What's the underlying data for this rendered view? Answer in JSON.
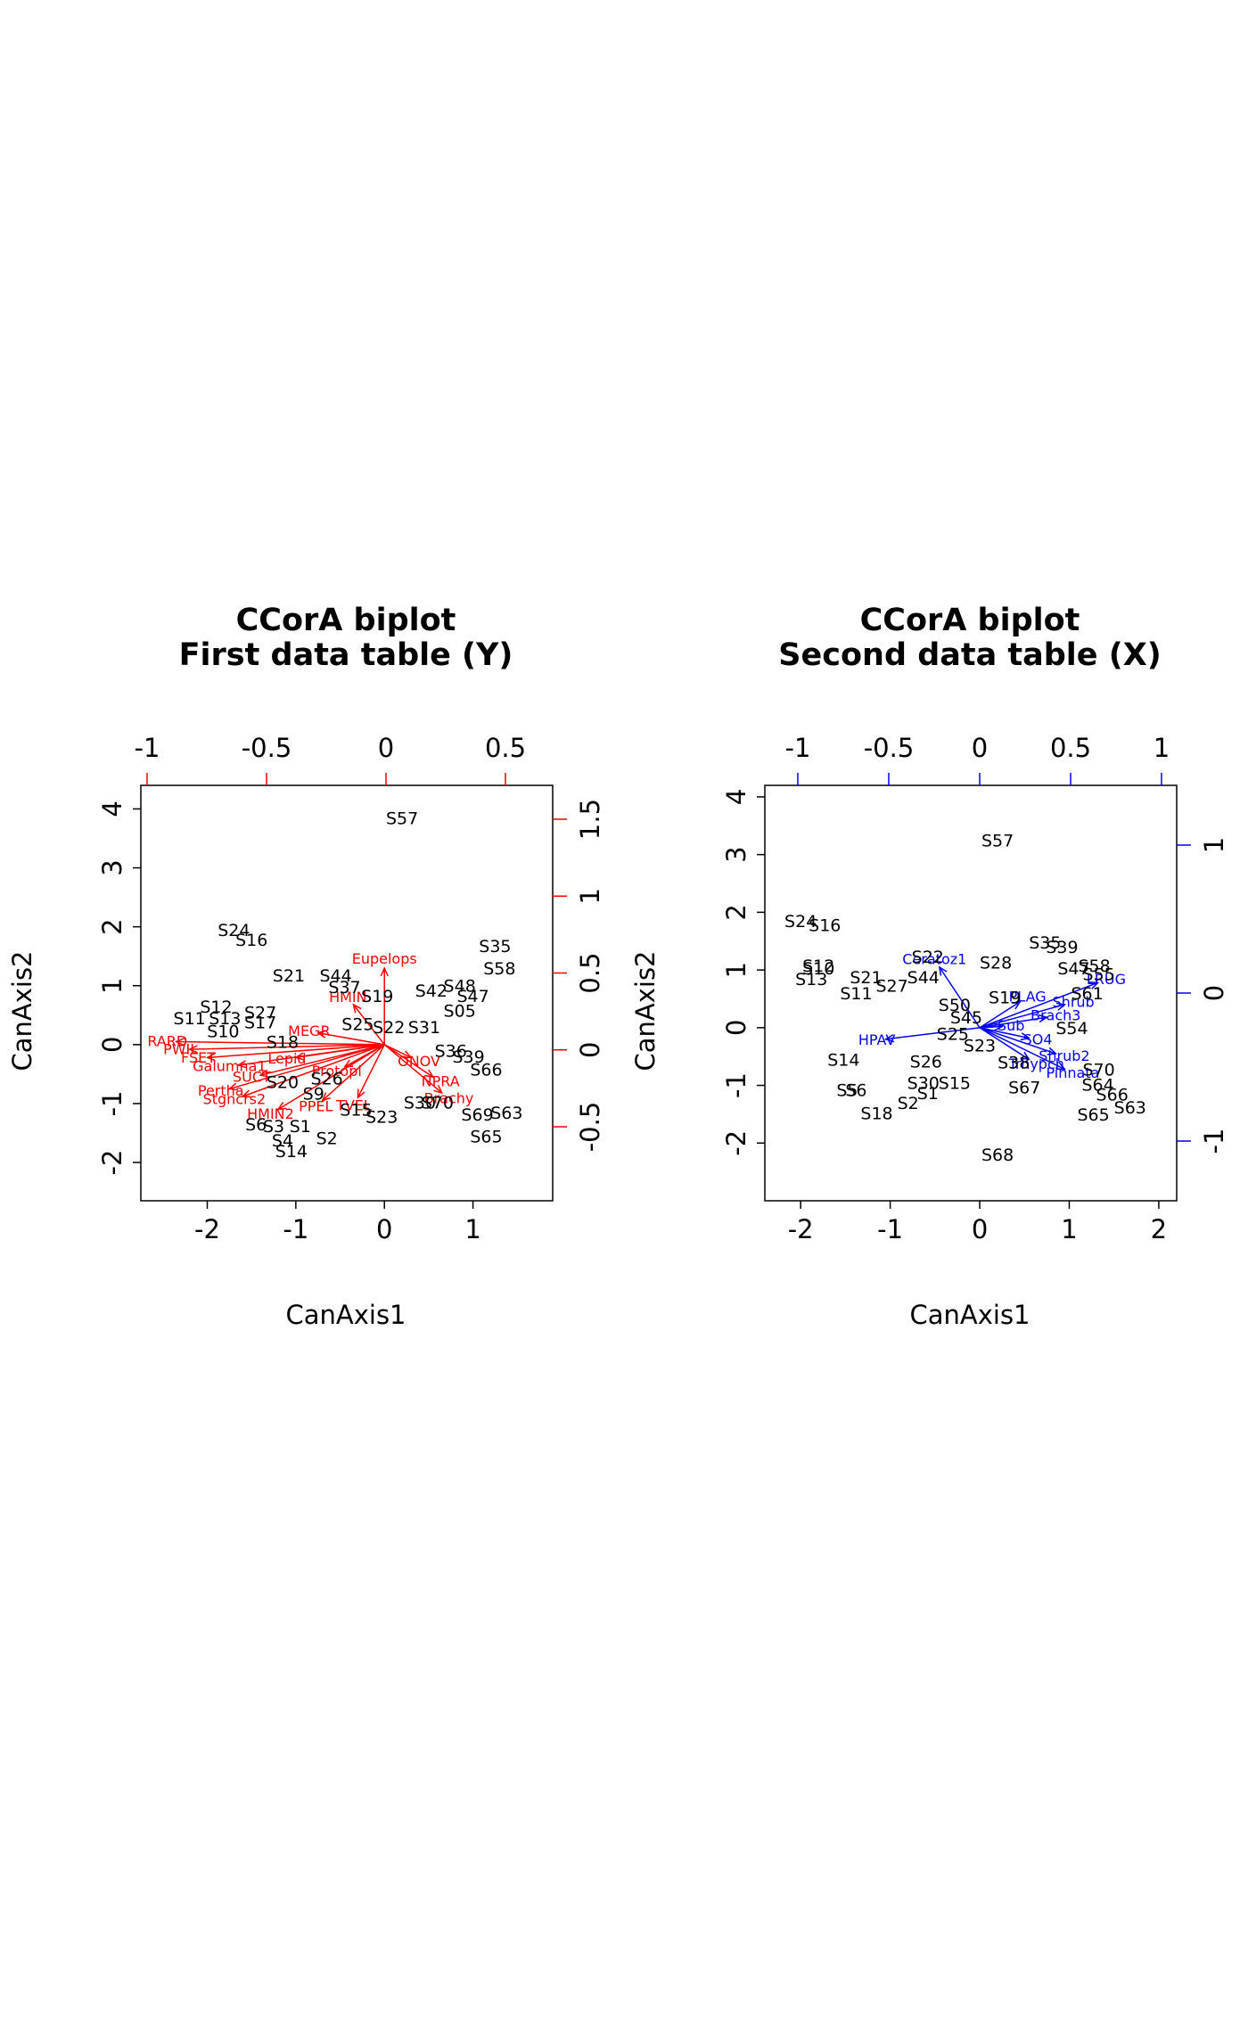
{
  "colors": {
    "y_vars": "#ff0000",
    "x_vars": "#0000ff",
    "sites": "#000000",
    "frame": "#000000"
  },
  "chart_data": [
    {
      "type": "scatter",
      "panel": "left",
      "title": "CCorA biplot",
      "subtitle": "First data table (Y)",
      "xlabel": "CanAxis1",
      "ylabel": "CanAxis2",
      "xlim": [
        -2.75,
        1.9
      ],
      "ylim": [
        -2.65,
        4.4
      ],
      "xticks": [
        -2,
        -1,
        0,
        1
      ],
      "yticks": [
        -2,
        -1,
        0,
        1,
        2,
        3,
        4
      ],
      "top_axis_ticks": [
        -1.0,
        -0.5,
        0.0,
        0.5
      ],
      "right_axis_ticks": [
        -0.5,
        0.0,
        0.5,
        1.0,
        1.5
      ],
      "var_color": "#ff0000",
      "sites": [
        {
          "label": "S57",
          "x": 0.2,
          "y": 3.85
        },
        {
          "label": "S24",
          "x": -1.7,
          "y": 1.95
        },
        {
          "label": "S16",
          "x": -1.5,
          "y": 1.78
        },
        {
          "label": "S21",
          "x": -1.08,
          "y": 1.18
        },
        {
          "label": "S44",
          "x": -0.55,
          "y": 1.18
        },
        {
          "label": "S37",
          "x": -0.45,
          "y": 0.98
        },
        {
          "label": "S35",
          "x": 1.25,
          "y": 1.68
        },
        {
          "label": "S58",
          "x": 1.3,
          "y": 1.3
        },
        {
          "label": "S48",
          "x": 0.85,
          "y": 1.0
        },
        {
          "label": "S47",
          "x": 1.0,
          "y": 0.83
        },
        {
          "label": "S42",
          "x": 0.53,
          "y": 0.92
        },
        {
          "label": "S19",
          "x": -0.08,
          "y": 0.83
        },
        {
          "label": "S25",
          "x": -0.3,
          "y": 0.35
        },
        {
          "label": "S22",
          "x": 0.05,
          "y": 0.3
        },
        {
          "label": "S31",
          "x": 0.45,
          "y": 0.3
        },
        {
          "label": "S05",
          "x": 0.85,
          "y": 0.58
        },
        {
          "label": "S12",
          "x": -1.9,
          "y": 0.65
        },
        {
          "label": "S27",
          "x": -1.4,
          "y": 0.55
        },
        {
          "label": "S17",
          "x": -1.4,
          "y": 0.38
        },
        {
          "label": "S11",
          "x": -2.2,
          "y": 0.45
        },
        {
          "label": "S13",
          "x": -1.8,
          "y": 0.45
        },
        {
          "label": "S10",
          "x": -1.82,
          "y": 0.23
        },
        {
          "label": "S18",
          "x": -1.15,
          "y": 0.05
        },
        {
          "label": "S36",
          "x": 0.75,
          "y": -0.1
        },
        {
          "label": "S39",
          "x": 0.95,
          "y": -0.2
        },
        {
          "label": "S66",
          "x": 1.15,
          "y": -0.42
        },
        {
          "label": "S20",
          "x": -1.15,
          "y": -0.63
        },
        {
          "label": "S26",
          "x": -0.65,
          "y": -0.57
        },
        {
          "label": "S9",
          "x": -0.8,
          "y": -0.83
        },
        {
          "label": "S15",
          "x": -0.32,
          "y": -1.1
        },
        {
          "label": "S23",
          "x": -0.03,
          "y": -1.22
        },
        {
          "label": "S30",
          "x": 0.4,
          "y": -0.98
        },
        {
          "label": "S70",
          "x": 0.6,
          "y": -0.98
        },
        {
          "label": "S69",
          "x": 1.05,
          "y": -1.18
        },
        {
          "label": "S63",
          "x": 1.38,
          "y": -1.15
        },
        {
          "label": "S65",
          "x": 1.15,
          "y": -1.55
        },
        {
          "label": "S6",
          "x": -1.45,
          "y": -1.35
        },
        {
          "label": "S3",
          "x": -1.25,
          "y": -1.38
        },
        {
          "label": "S1",
          "x": -0.95,
          "y": -1.38
        },
        {
          "label": "S4",
          "x": -1.15,
          "y": -1.62
        },
        {
          "label": "S2",
          "x": -0.65,
          "y": -1.58
        },
        {
          "label": "S14",
          "x": -1.05,
          "y": -1.8
        }
      ],
      "arrows": [
        {
          "label": "Eupelops",
          "x": 0.0,
          "y": 1.3
        },
        {
          "label": "HMIN",
          "x": -0.35,
          "y": 0.68
        },
        {
          "label": "MEGR",
          "x": -0.75,
          "y": 0.2
        },
        {
          "label": "RARD",
          "x": -2.35,
          "y": 0.05
        },
        {
          "label": "PWIL",
          "x": -2.2,
          "y": -0.08
        },
        {
          "label": "FSET",
          "x": -2.0,
          "y": -0.22
        },
        {
          "label": "Galumna1",
          "x": -1.65,
          "y": -0.35
        },
        {
          "label": "Lepid",
          "x": -1.0,
          "y": -0.22
        },
        {
          "label": "SUCT",
          "x": -1.4,
          "y": -0.52
        },
        {
          "label": "Pertha",
          "x": -1.75,
          "y": -0.75
        },
        {
          "label": "Stgncrs2",
          "x": -1.6,
          "y": -0.88
        },
        {
          "label": "HMIN2",
          "x": -1.2,
          "y": -1.1
        },
        {
          "label": "PPEL",
          "x": -0.7,
          "y": -0.95
        },
        {
          "label": "TVEL",
          "x": -0.3,
          "y": -0.9
        },
        {
          "label": "Brachy",
          "x": 0.65,
          "y": -0.82
        },
        {
          "label": "NPRA",
          "x": 0.55,
          "y": -0.55
        },
        {
          "label": "ONOV",
          "x": 0.3,
          "y": -0.22
        },
        {
          "label": "Protopl",
          "x": -0.45,
          "y": -0.38
        }
      ]
    },
    {
      "type": "scatter",
      "panel": "right",
      "title": "CCorA biplot",
      "subtitle": "Second data table (X)",
      "xlabel": "CanAxis1",
      "ylabel": "CanAxis2",
      "xlim": [
        -2.4,
        2.2
      ],
      "ylim": [
        -3.0,
        4.2
      ],
      "xticks": [
        -2,
        -1,
        0,
        1,
        2
      ],
      "yticks": [
        -2,
        -1,
        0,
        1,
        2,
        3,
        4
      ],
      "top_axis_ticks": [
        -1.0,
        -0.5,
        0.0,
        0.5,
        1.0
      ],
      "right_axis_ticks": [
        -1.0,
        0.0,
        1.0
      ],
      "var_color": "#0000ff",
      "sites": [
        {
          "label": "S57",
          "x": 0.2,
          "y": 3.25
        },
        {
          "label": "S24",
          "x": -2.0,
          "y": 1.85
        },
        {
          "label": "S16",
          "x": -1.73,
          "y": 1.78
        },
        {
          "label": "S10",
          "x": -1.8,
          "y": 1.03
        },
        {
          "label": "S12",
          "x": -1.8,
          "y": 1.08
        },
        {
          "label": "S13",
          "x": -1.88,
          "y": 0.85
        },
        {
          "label": "S21",
          "x": -1.27,
          "y": 0.88
        },
        {
          "label": "S11",
          "x": -1.38,
          "y": 0.6
        },
        {
          "label": "S27",
          "x": -0.98,
          "y": 0.73
        },
        {
          "label": "S22",
          "x": -0.58,
          "y": 1.23
        },
        {
          "label": "S44",
          "x": -0.63,
          "y": 0.88
        },
        {
          "label": "S28",
          "x": 0.18,
          "y": 1.13
        },
        {
          "label": "S35",
          "x": 0.73,
          "y": 1.48
        },
        {
          "label": "S39",
          "x": 0.92,
          "y": 1.4
        },
        {
          "label": "S58",
          "x": 1.28,
          "y": 1.08
        },
        {
          "label": "S47",
          "x": 1.05,
          "y": 1.03
        },
        {
          "label": "S55",
          "x": 1.33,
          "y": 0.93
        },
        {
          "label": "S61",
          "x": 1.2,
          "y": 0.6
        },
        {
          "label": "S19",
          "x": 0.28,
          "y": 0.53
        },
        {
          "label": "S50",
          "x": -0.28,
          "y": 0.4
        },
        {
          "label": "S45",
          "x": -0.15,
          "y": 0.18
        },
        {
          "label": "S25",
          "x": -0.3,
          "y": -0.1
        },
        {
          "label": "S23",
          "x": 0.0,
          "y": -0.3
        },
        {
          "label": "S54",
          "x": 1.03,
          "y": 0.0
        },
        {
          "label": "S38",
          "x": 0.38,
          "y": -0.6
        },
        {
          "label": "S67",
          "x": 0.5,
          "y": -1.03
        },
        {
          "label": "S70",
          "x": 1.33,
          "y": -0.72
        },
        {
          "label": "S64",
          "x": 1.32,
          "y": -0.98
        },
        {
          "label": "S66",
          "x": 1.48,
          "y": -1.15
        },
        {
          "label": "S63",
          "x": 1.68,
          "y": -1.38
        },
        {
          "label": "S65",
          "x": 1.27,
          "y": -1.5
        },
        {
          "label": "S68",
          "x": 0.2,
          "y": -2.2
        },
        {
          "label": "S14",
          "x": -1.52,
          "y": -0.55
        },
        {
          "label": "S26",
          "x": -0.6,
          "y": -0.58
        },
        {
          "label": "S30",
          "x": -0.63,
          "y": -0.95
        },
        {
          "label": "S15",
          "x": -0.28,
          "y": -0.95
        },
        {
          "label": "S1",
          "x": -0.58,
          "y": -1.13
        },
        {
          "label": "S2",
          "x": -0.8,
          "y": -1.3
        },
        {
          "label": "S18",
          "x": -1.15,
          "y": -1.48
        },
        {
          "label": "S5",
          "x": -1.48,
          "y": -1.08
        },
        {
          "label": "S6",
          "x": -1.38,
          "y": -1.08
        }
      ],
      "arrows": [
        {
          "label": "Ceratoz1",
          "x": -0.45,
          "y": 1.05
        },
        {
          "label": "LRUG",
          "x": 1.32,
          "y": 0.78
        },
        {
          "label": "HPAV",
          "x": -1.05,
          "y": -0.2
        },
        {
          "label": "PLAG",
          "x": 0.45,
          "y": 0.45
        },
        {
          "label": "Shrub",
          "x": 0.95,
          "y": 0.4
        },
        {
          "label": "Brach3",
          "x": 0.75,
          "y": 0.18
        },
        {
          "label": "Trhypch",
          "x": 0.55,
          "y": -0.55
        },
        {
          "label": "Shrub2",
          "x": 0.85,
          "y": -0.45
        },
        {
          "label": "Pinnata",
          "x": 0.95,
          "y": -0.72
        },
        {
          "label": "SO4",
          "x": 0.55,
          "y": -0.18
        },
        {
          "label": "Sub",
          "x": 0.25,
          "y": 0.02
        }
      ]
    }
  ]
}
